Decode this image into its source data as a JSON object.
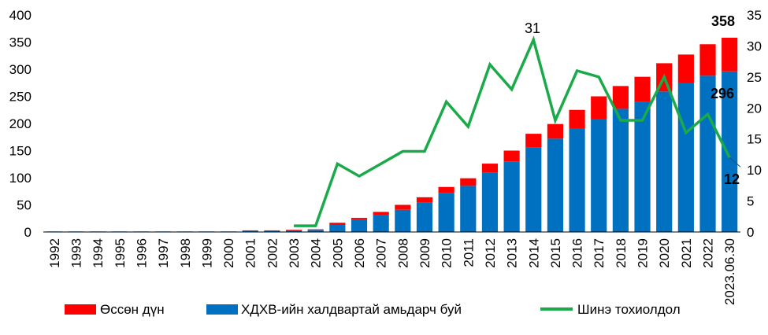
{
  "chart_data": {
    "type": "bar",
    "categories": [
      "1992",
      "1993",
      "1994",
      "1995",
      "1996",
      "1997",
      "1998",
      "1999",
      "2000",
      "2001",
      "2002",
      "2003",
      "2004",
      "2005",
      "2006",
      "2007",
      "2008",
      "2009",
      "2010",
      "2011",
      "2012",
      "2013",
      "2014",
      "2015",
      "2016",
      "2017",
      "2018",
      "2019",
      "2020",
      "2021",
      "2022",
      "2023.06.30"
    ],
    "stacked": true,
    "series": [
      {
        "name": "ХДХВ-ийн халдвартай амьдарч буй",
        "kind": "bar",
        "axis": "left",
        "color": "#0070C0",
        "values": [
          1,
          1,
          1,
          1,
          1,
          1,
          1,
          1,
          1,
          2,
          2,
          3,
          4,
          13,
          22,
          31,
          41,
          54,
          72,
          85,
          110,
          130,
          156,
          172,
          190,
          208,
          227,
          240,
          259,
          274,
          288,
          296
        ]
      },
      {
        "name": "Өссөн дүн",
        "kind": "bar",
        "axis": "left",
        "color": "#FF0000",
        "values": [
          0,
          0,
          0,
          0,
          0,
          0,
          0,
          0,
          0,
          1,
          1,
          1,
          1,
          4,
          4,
          6,
          9,
          10,
          11,
          14,
          16,
          20,
          25,
          27,
          35,
          42,
          42,
          46,
          52,
          53,
          58,
          62
        ]
      },
      {
        "name": "Шинэ тохиолдол",
        "kind": "line",
        "axis": "right",
        "color": "#1AAA4A",
        "values": [
          null,
          null,
          null,
          null,
          null,
          null,
          null,
          null,
          null,
          null,
          null,
          1,
          1,
          11,
          9,
          11,
          13,
          13,
          21,
          17,
          27,
          23,
          31,
          18,
          26,
          25,
          18,
          18,
          25,
          16,
          19,
          12
        ]
      }
    ],
    "ylim_left": [
      0,
      400
    ],
    "yticks_left": [
      0,
      50,
      100,
      150,
      200,
      250,
      300,
      350,
      400
    ],
    "ylim_right": [
      0,
      35
    ],
    "yticks_right": [
      0,
      5,
      10,
      15,
      20,
      25,
      30,
      35
    ],
    "annotations": [
      {
        "text": "358",
        "bold": true
      },
      {
        "text": "296",
        "bold": true
      },
      {
        "text": "31",
        "bold": false
      },
      {
        "text": "12",
        "bold": true
      }
    ],
    "legend_position": "bottom",
    "grid": false
  }
}
